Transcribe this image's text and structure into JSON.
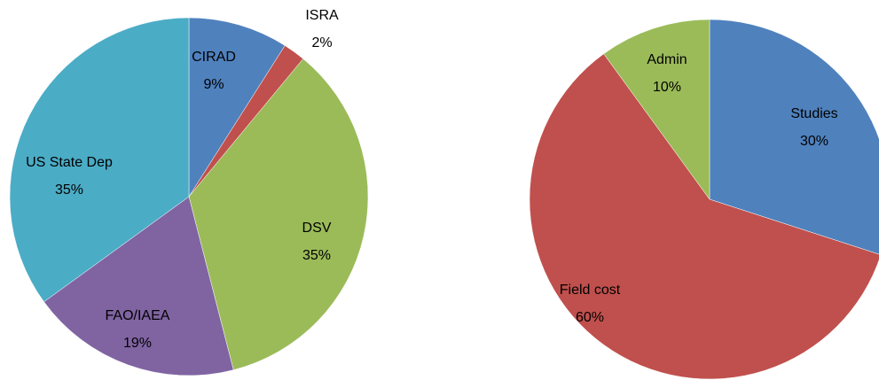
{
  "chart_data": [
    {
      "type": "pie",
      "categories": [
        "CIRAD",
        "ISRA",
        "DSV",
        "FAO/IAEA",
        "US State Dep"
      ],
      "values": [
        9,
        2,
        35,
        19,
        35
      ],
      "value_labels": [
        "9%",
        "2%",
        "35%",
        "19%",
        "35%"
      ],
      "colors": [
        "#4f81bd",
        "#c0504d",
        "#9bbb59",
        "#8064a2",
        "#4bacc6"
      ]
    },
    {
      "type": "pie",
      "categories": [
        "Studies",
        "Field cost",
        "Admin"
      ],
      "values": [
        30,
        60,
        10
      ],
      "value_labels": [
        "30%",
        "60%",
        "10%"
      ],
      "colors": [
        "#4f81bd",
        "#c0504d",
        "#9bbb59"
      ]
    }
  ]
}
